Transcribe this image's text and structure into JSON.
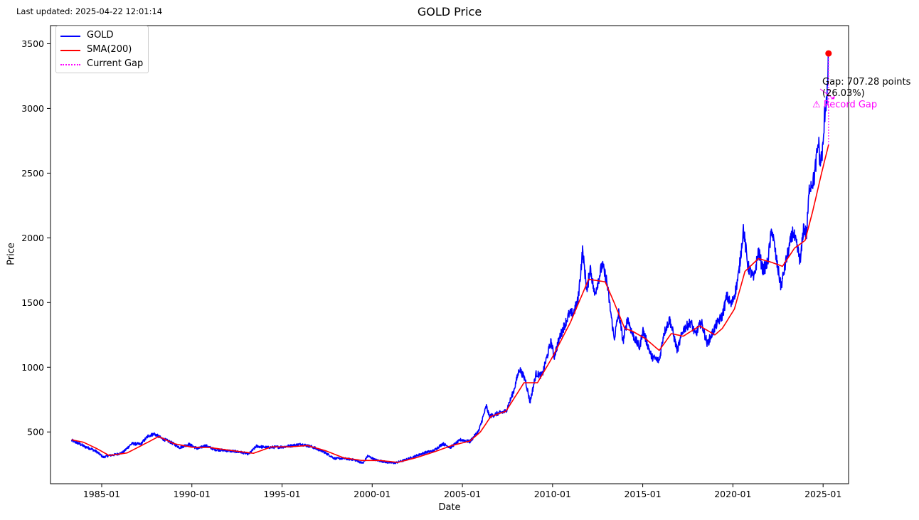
{
  "header": {
    "last_updated": "Last updated: 2025-04-22 12:01:14"
  },
  "chart_data": {
    "type": "line",
    "title": "GOLD Price",
    "xlabel": "Date",
    "ylabel": "Price",
    "xlim": [
      "1982-03-01",
      "2026-06-01"
    ],
    "ylim": [
      100,
      3640
    ],
    "x_tick_labels": [
      "1985-01",
      "1990-01",
      "1995-01",
      "2000-01",
      "2005-01",
      "2010-01",
      "2015-01",
      "2020-01",
      "2025-01"
    ],
    "y_tick_labels": [
      "500",
      "1000",
      "1500",
      "2000",
      "2500",
      "3000",
      "3500"
    ],
    "grid": false,
    "legend_position": "upper-left",
    "series": [
      {
        "name": "GOLD",
        "color": "#0000ff",
        "points": [
          [
            "1983-05-01",
            435
          ],
          [
            "1983-10-01",
            410
          ],
          [
            "1984-02-01",
            385
          ],
          [
            "1984-06-01",
            370
          ],
          [
            "1984-10-01",
            345
          ],
          [
            "1985-02-01",
            305
          ],
          [
            "1985-06-01",
            318
          ],
          [
            "1985-10-01",
            325
          ],
          [
            "1986-03-01",
            340
          ],
          [
            "1986-09-01",
            410
          ],
          [
            "1987-03-01",
            405
          ],
          [
            "1987-08-01",
            470
          ],
          [
            "1987-12-01",
            485
          ],
          [
            "1988-05-01",
            450
          ],
          [
            "1988-11-01",
            420
          ],
          [
            "1989-05-01",
            380
          ],
          [
            "1989-11-01",
            405
          ],
          [
            "1990-05-01",
            370
          ],
          [
            "1990-10-01",
            395
          ],
          [
            "1991-04-01",
            365
          ],
          [
            "1992-01-01",
            355
          ],
          [
            "1992-09-01",
            345
          ],
          [
            "1993-03-01",
            330
          ],
          [
            "1993-08-01",
            390
          ],
          [
            "1994-03-01",
            380
          ],
          [
            "1995-02-01",
            385
          ],
          [
            "1996-02-01",
            405
          ],
          [
            "1996-09-01",
            385
          ],
          [
            "1997-05-01",
            345
          ],
          [
            "1997-12-01",
            295
          ],
          [
            "1998-06-01",
            295
          ],
          [
            "1999-01-01",
            285
          ],
          [
            "1999-07-01",
            258
          ],
          [
            "1999-10-01",
            315
          ],
          [
            "2000-03-01",
            285
          ],
          [
            "2000-11-01",
            265
          ],
          [
            "2001-04-01",
            260
          ],
          [
            "2001-10-01",
            280
          ],
          [
            "2002-05-01",
            310
          ],
          [
            "2002-12-01",
            340
          ],
          [
            "2003-06-01",
            355
          ],
          [
            "2003-12-01",
            410
          ],
          [
            "2004-05-01",
            380
          ],
          [
            "2004-12-01",
            440
          ],
          [
            "2005-06-01",
            425
          ],
          [
            "2005-12-01",
            510
          ],
          [
            "2006-05-01",
            700
          ],
          [
            "2006-07-01",
            620
          ],
          [
            "2006-12-01",
            640
          ],
          [
            "2007-06-01",
            660
          ],
          [
            "2007-11-01",
            810
          ],
          [
            "2008-03-01",
            990
          ],
          [
            "2008-07-01",
            900
          ],
          [
            "2008-10-01",
            730
          ],
          [
            "2009-02-01",
            950
          ],
          [
            "2009-06-01",
            935
          ],
          [
            "2009-12-01",
            1200
          ],
          [
            "2010-02-01",
            1080
          ],
          [
            "2010-06-01",
            1240
          ],
          [
            "2010-12-01",
            1410
          ],
          [
            "2011-03-01",
            1420
          ],
          [
            "2011-06-01",
            1520
          ],
          [
            "2011-09-01",
            1900
          ],
          [
            "2011-12-01",
            1580
          ],
          [
            "2012-02-01",
            1780
          ],
          [
            "2012-05-01",
            1560
          ],
          [
            "2012-10-01",
            1790
          ],
          [
            "2013-01-01",
            1670
          ],
          [
            "2013-04-01",
            1400
          ],
          [
            "2013-06-01",
            1220
          ],
          [
            "2013-09-01",
            1420
          ],
          [
            "2013-12-01",
            1200
          ],
          [
            "2014-03-01",
            1380
          ],
          [
            "2014-06-01",
            1260
          ],
          [
            "2014-11-01",
            1150
          ],
          [
            "2015-01-01",
            1290
          ],
          [
            "2015-07-01",
            1080
          ],
          [
            "2015-12-01",
            1050
          ],
          [
            "2016-03-01",
            1260
          ],
          [
            "2016-07-01",
            1370
          ],
          [
            "2016-12-01",
            1130
          ],
          [
            "2017-04-01",
            1290
          ],
          [
            "2017-09-01",
            1350
          ],
          [
            "2017-12-01",
            1250
          ],
          [
            "2018-04-01",
            1350
          ],
          [
            "2018-08-01",
            1180
          ],
          [
            "2019-02-01",
            1330
          ],
          [
            "2019-06-01",
            1400
          ],
          [
            "2019-09-01",
            1550
          ],
          [
            "2019-12-01",
            1480
          ],
          [
            "2020-03-01",
            1600
          ],
          [
            "2020-05-01",
            1730
          ],
          [
            "2020-08-01",
            2070
          ],
          [
            "2020-11-01",
            1780
          ],
          [
            "2021-03-01",
            1680
          ],
          [
            "2021-06-01",
            1900
          ],
          [
            "2021-09-01",
            1750
          ],
          [
            "2021-12-01",
            1800
          ],
          [
            "2022-03-01",
            2070
          ],
          [
            "2022-06-01",
            1830
          ],
          [
            "2022-09-01",
            1620
          ],
          [
            "2022-12-01",
            1800
          ],
          [
            "2023-05-01",
            2050
          ],
          [
            "2023-10-01",
            1820
          ],
          [
            "2023-12-01",
            2080
          ],
          [
            "2024-02-01",
            2030
          ],
          [
            "2024-04-01",
            2400
          ],
          [
            "2024-07-01",
            2450
          ],
          [
            "2024-10-01",
            2750
          ],
          [
            "2024-11-01",
            2560
          ],
          [
            "2025-01-01",
            2700
          ],
          [
            "2025-02-01",
            2950
          ],
          [
            "2025-03-01",
            3050
          ],
          [
            "2025-04-01",
            3150
          ],
          [
            "2025-04-21",
            3425
          ]
        ]
      },
      {
        "name": "SMA(200)",
        "color": "#ff0000",
        "points": [
          [
            "1983-05-01",
            440
          ],
          [
            "1984-01-01",
            420
          ],
          [
            "1984-10-01",
            370
          ],
          [
            "1985-06-01",
            318
          ],
          [
            "1986-06-01",
            338
          ],
          [
            "1987-06-01",
            410
          ],
          [
            "1988-03-01",
            465
          ],
          [
            "1989-01-01",
            410
          ],
          [
            "1990-01-01",
            382
          ],
          [
            "1991-01-01",
            380
          ],
          [
            "1992-01-01",
            360
          ],
          [
            "1993-06-01",
            335
          ],
          [
            "1994-06-01",
            385
          ],
          [
            "1995-06-01",
            385
          ],
          [
            "1996-06-01",
            395
          ],
          [
            "1997-06-01",
            355
          ],
          [
            "1998-06-01",
            300
          ],
          [
            "1999-06-01",
            280
          ],
          [
            "2000-06-01",
            280
          ],
          [
            "2001-06-01",
            265
          ],
          [
            "2002-06-01",
            300
          ],
          [
            "2003-06-01",
            345
          ],
          [
            "2004-06-01",
            395
          ],
          [
            "2005-06-01",
            430
          ],
          [
            "2006-01-01",
            500
          ],
          [
            "2006-08-01",
            620
          ],
          [
            "2007-06-01",
            660
          ],
          [
            "2008-06-01",
            880
          ],
          [
            "2009-03-01",
            880
          ],
          [
            "2010-01-01",
            1080
          ],
          [
            "2011-01-01",
            1350
          ],
          [
            "2012-01-01",
            1680
          ],
          [
            "2012-12-01",
            1660
          ],
          [
            "2013-06-01",
            1500
          ],
          [
            "2014-01-01",
            1300
          ],
          [
            "2014-06-01",
            1280
          ],
          [
            "2015-03-01",
            1220
          ],
          [
            "2015-12-01",
            1130
          ],
          [
            "2016-08-01",
            1260
          ],
          [
            "2017-04-01",
            1240
          ],
          [
            "2018-03-01",
            1320
          ],
          [
            "2019-01-01",
            1250
          ],
          [
            "2019-06-01",
            1300
          ],
          [
            "2020-02-01",
            1450
          ],
          [
            "2020-09-01",
            1740
          ],
          [
            "2021-06-01",
            1840
          ],
          [
            "2022-03-01",
            1810
          ],
          [
            "2022-10-01",
            1780
          ],
          [
            "2023-06-01",
            1920
          ],
          [
            "2024-01-01",
            1980
          ],
          [
            "2024-06-01",
            2200
          ],
          [
            "2024-12-01",
            2500
          ],
          [
            "2025-04-21",
            2718
          ]
        ]
      },
      {
        "name": "Current Gap",
        "color": "#ff00ff"
      }
    ],
    "current_point": {
      "x": "2025-04-21",
      "y": 3425,
      "color": "#ff0000"
    },
    "gap_segment": {
      "x": "2025-04-21",
      "from": 2718,
      "to": 3425
    },
    "annotations": {
      "gap_line1": "Gap: 707.28 points",
      "gap_line2": "(26.03%)",
      "record": "⚠ Record Gap"
    }
  }
}
